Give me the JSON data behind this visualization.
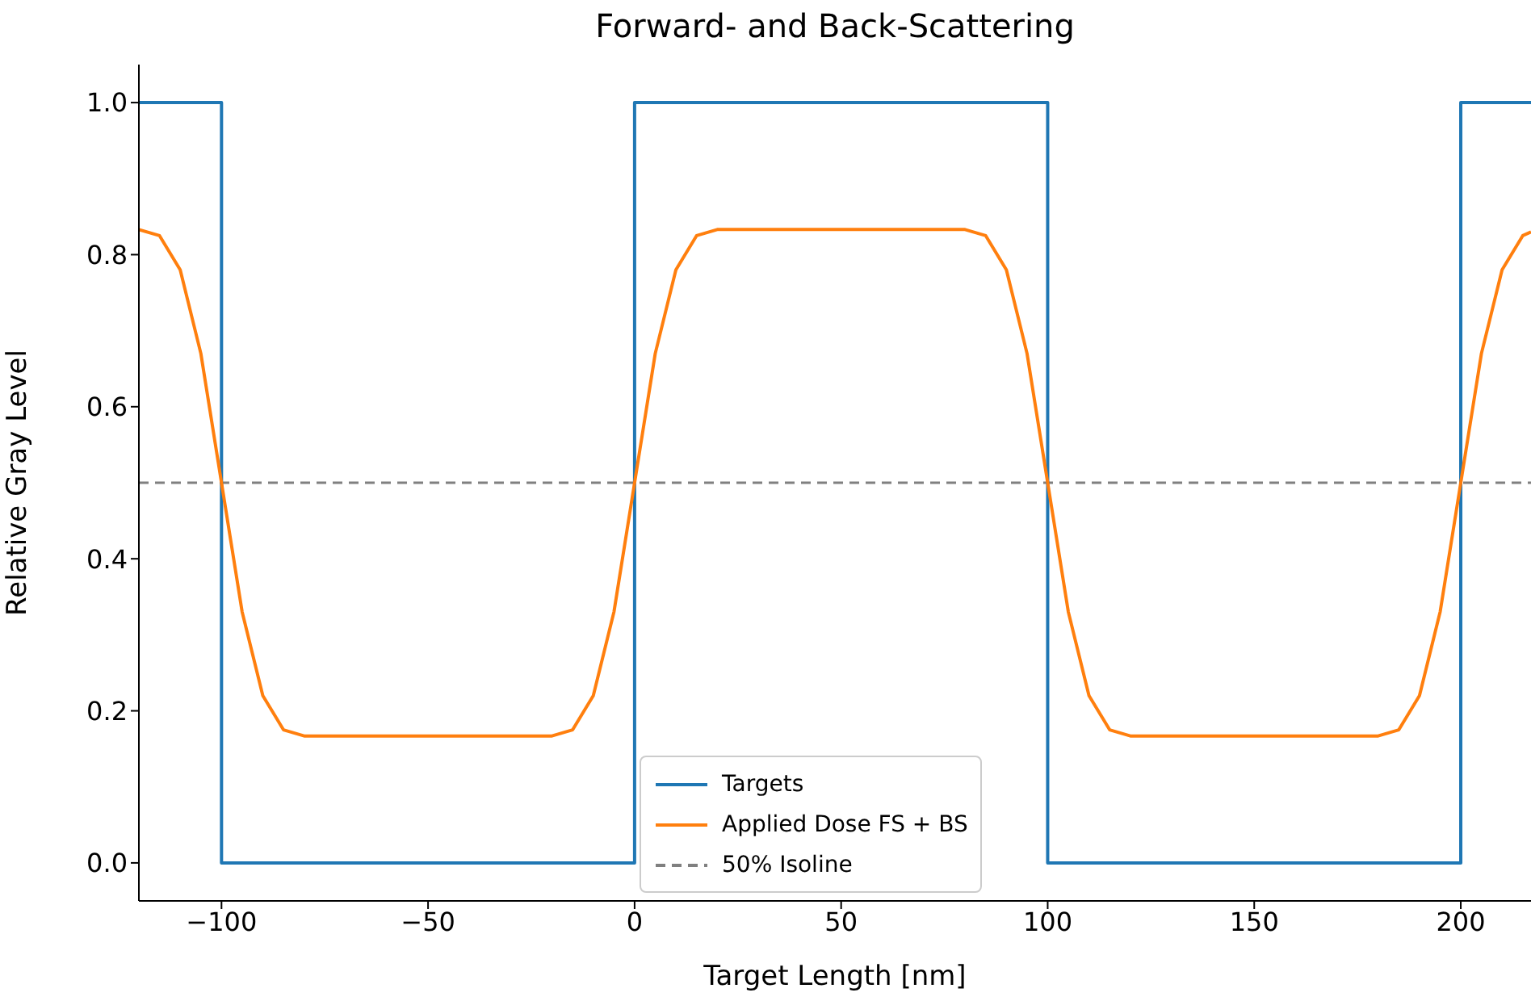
{
  "chart_data": {
    "type": "line",
    "title": "Forward- and Back-Scattering",
    "xlabel": "Target Length [nm]",
    "ylabel": "Relative Gray Level",
    "xlim": [
      -120,
      217
    ],
    "xticks": [
      {
        "value": -100,
        "label": "−100"
      },
      {
        "value": -50,
        "label": "−50"
      },
      0,
      50,
      100,
      150,
      200
    ],
    "ylim": [
      -0.05,
      1.05
    ],
    "yticks": [
      {
        "value": 0,
        "label": "0.0"
      },
      {
        "value": 0.2,
        "label": "0.2"
      },
      {
        "value": 0.4,
        "label": "0.4"
      },
      {
        "value": 0.6,
        "label": "0.6"
      },
      {
        "value": 0.8,
        "label": "0.8"
      },
      {
        "value": 1,
        "label": "1.0"
      }
    ],
    "grid": false,
    "legend": "bottom",
    "line_style": "solid",
    "marker": "none",
    "series": [
      {
        "name": "Targets",
        "type": "step",
        "color": "#1f77b4",
        "x": [
          -120,
          -100,
          0,
          100,
          200,
          217
        ],
        "values": [
          1,
          0,
          1,
          0,
          1,
          1
        ]
      },
      {
        "name": "Applied Dose FS + BS",
        "type": "line",
        "color": "#ff7f0e",
        "x": [
          -120,
          -115,
          -110,
          -105,
          -100,
          -95,
          -90,
          -85,
          -80,
          -20,
          -15,
          -10,
          -5,
          0,
          5,
          10,
          15,
          20,
          80,
          85,
          90,
          95,
          100,
          105,
          110,
          115,
          120,
          180,
          185,
          190,
          195,
          200,
          205,
          210,
          215,
          217
        ],
        "values": [
          0.833,
          0.825,
          0.78,
          0.67,
          0.5,
          0.33,
          0.22,
          0.175,
          0.167,
          0.167,
          0.175,
          0.22,
          0.33,
          0.5,
          0.67,
          0.78,
          0.825,
          0.833,
          0.833,
          0.825,
          0.78,
          0.67,
          0.5,
          0.33,
          0.22,
          0.175,
          0.167,
          0.167,
          0.175,
          0.22,
          0.33,
          0.5,
          0.67,
          0.78,
          0.825,
          0.83
        ]
      }
    ],
    "ref_lines": [
      {
        "axis": "y",
        "value": 0.5,
        "label": "50% Isoline",
        "color": "#808080",
        "line_style": "dashed"
      }
    ]
  }
}
